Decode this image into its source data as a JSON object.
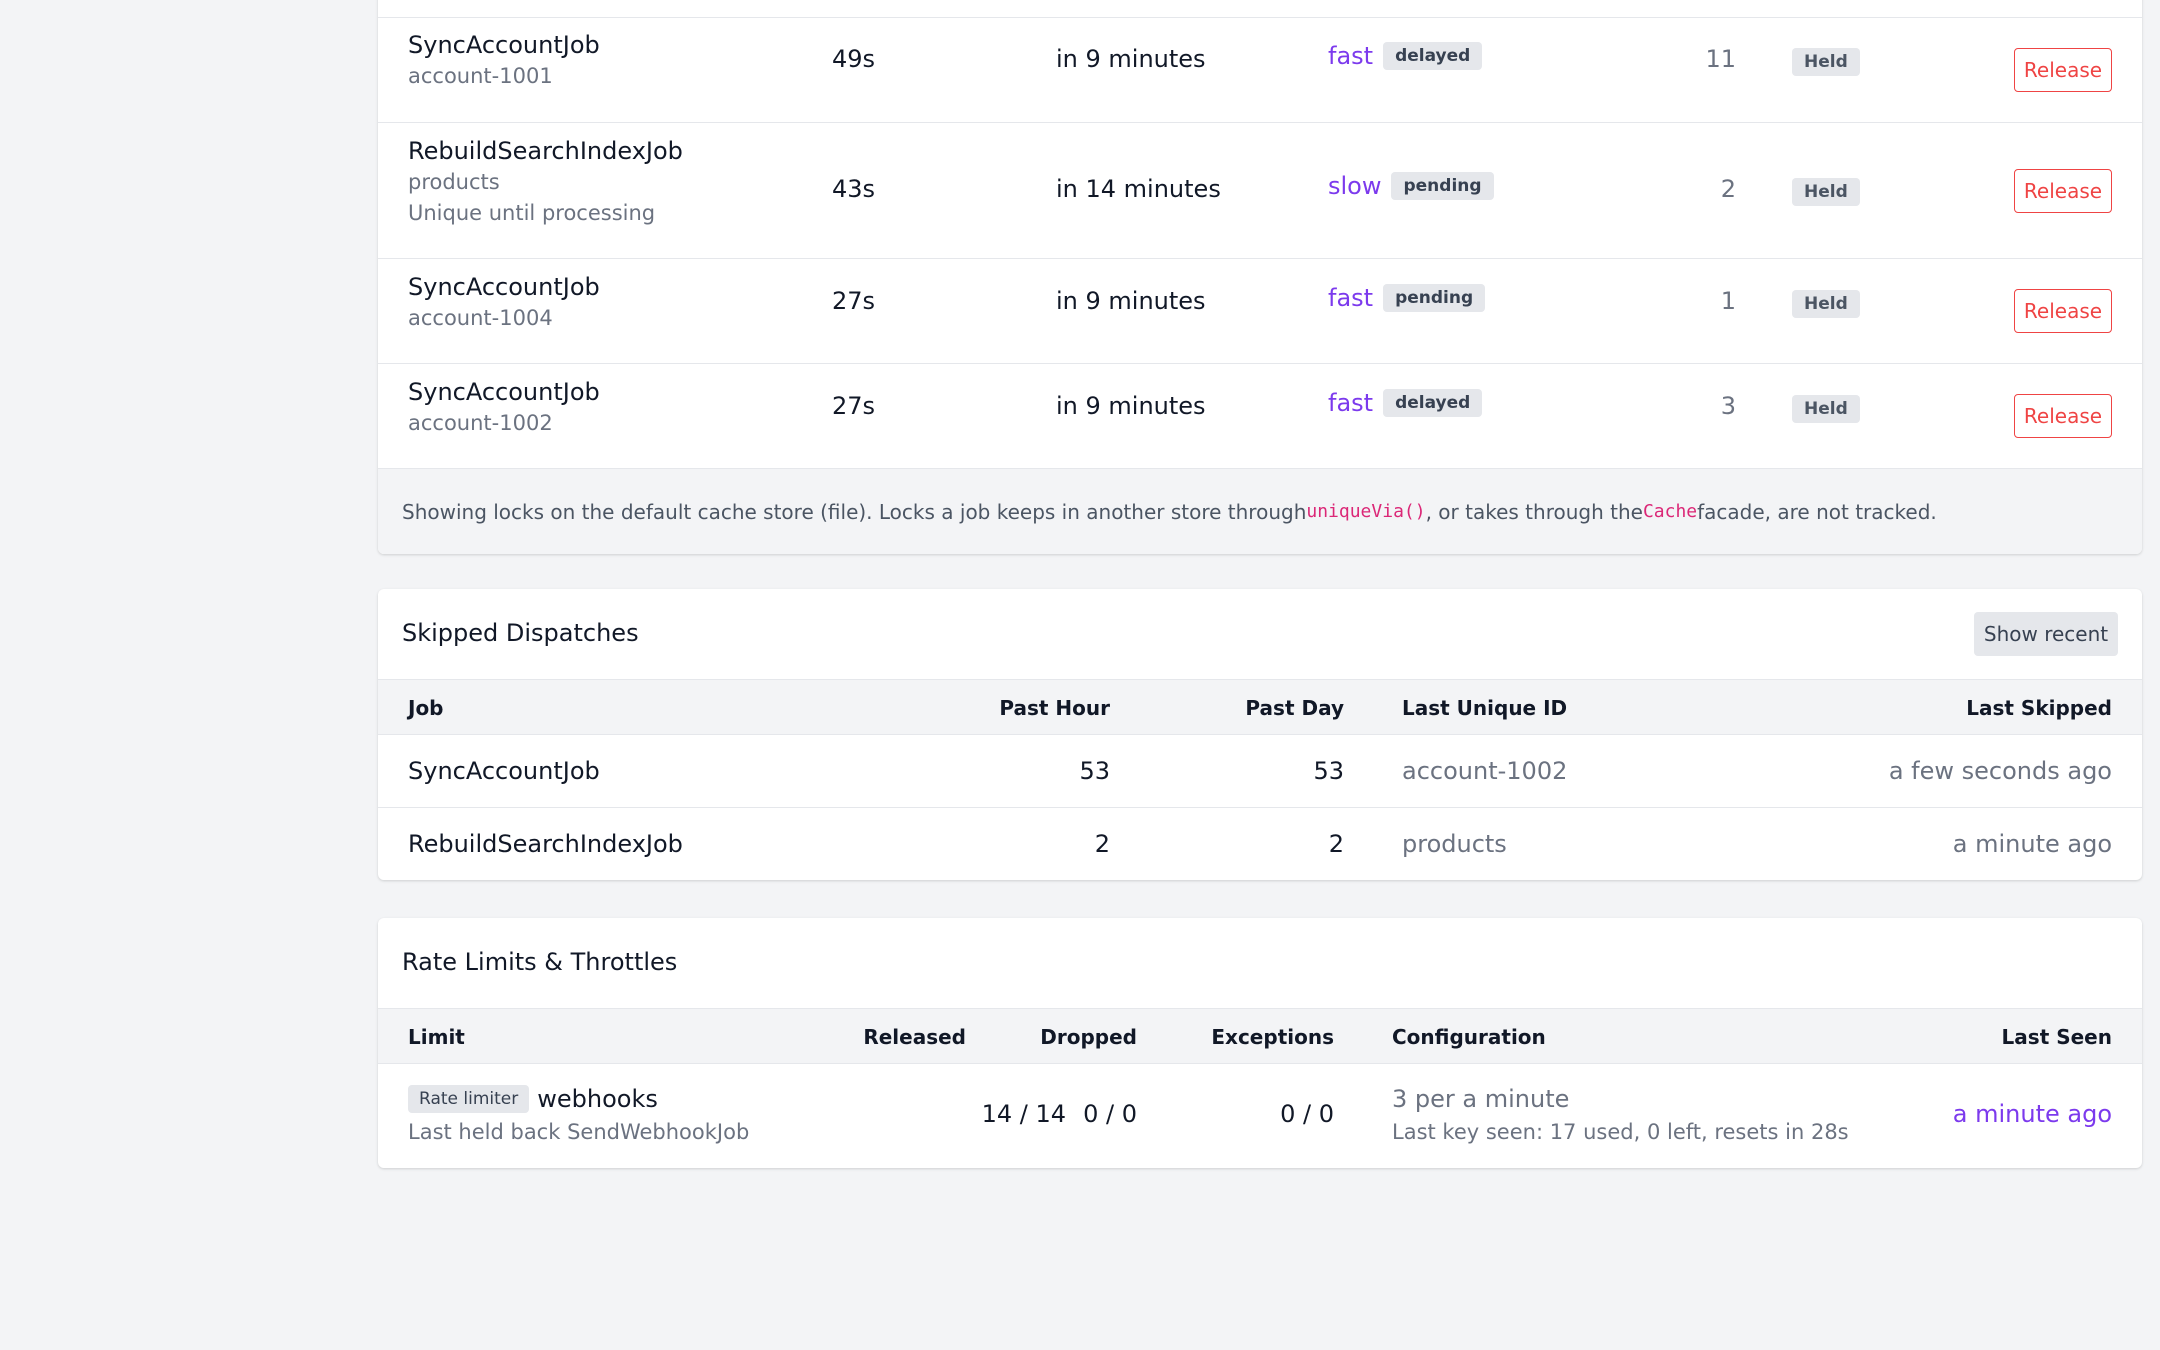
{
  "locks": {
    "rows": [
      {
        "job": "SyncAccountJob",
        "unique_id": "account-1001",
        "note": "",
        "duration": "49s",
        "expires": "in 9 minutes",
        "queue": "fast",
        "state": "delayed",
        "count": "11",
        "status": "Held",
        "action": "Release"
      },
      {
        "job": "RebuildSearchIndexJob",
        "unique_id": "products",
        "note": "Unique until processing",
        "duration": "43s",
        "expires": "in 14 minutes",
        "queue": "slow",
        "state": "pending",
        "count": "2",
        "status": "Held",
        "action": "Release"
      },
      {
        "job": "SyncAccountJob",
        "unique_id": "account-1004",
        "note": "",
        "duration": "27s",
        "expires": "in 9 minutes",
        "queue": "fast",
        "state": "pending",
        "count": "1",
        "status": "Held",
        "action": "Release"
      },
      {
        "job": "SyncAccountJob",
        "unique_id": "account-1002",
        "note": "",
        "duration": "27s",
        "expires": "in 9 minutes",
        "queue": "fast",
        "state": "delayed",
        "count": "3",
        "status": "Held",
        "action": "Release"
      }
    ],
    "footer": {
      "text_1": "Showing locks on the default cache store (file). Locks a job keeps in another store through ",
      "code_1": "uniqueVia()",
      "text_2": ", or takes through the ",
      "code_2": "Cache",
      "text_3": " facade, are not tracked."
    }
  },
  "skipped": {
    "title": "Skipped Dispatches",
    "show_recent_label": "Show recent",
    "columns": {
      "job": "Job",
      "past_hour": "Past Hour",
      "past_day": "Past Day",
      "last_unique_id": "Last Unique ID",
      "last_skipped": "Last Skipped"
    },
    "rows": [
      {
        "job": "SyncAccountJob",
        "past_hour": "53",
        "past_day": "53",
        "last_unique_id": "account-1002",
        "last_skipped": "a few seconds ago"
      },
      {
        "job": "RebuildSearchIndexJob",
        "past_hour": "2",
        "past_day": "2",
        "last_unique_id": "products",
        "last_skipped": "a minute ago"
      }
    ]
  },
  "rate_limits": {
    "title": "Rate Limits & Throttles",
    "columns": {
      "limit": "Limit",
      "released": "Released",
      "dropped": "Dropped",
      "exceptions": "Exceptions",
      "configuration": "Configuration",
      "last_seen": "Last Seen"
    },
    "rows": [
      {
        "type": "Rate limiter",
        "name": "webhooks",
        "detail": "Last held back SendWebhookJob",
        "released": "14 / 14",
        "dropped": "0 / 0",
        "exceptions": "0 / 0",
        "config": "3 per a minute",
        "config_detail": "Last key seen: 17 used, 0 left, resets in 28s",
        "last_seen": "a minute ago"
      }
    ]
  },
  "colors": {
    "accent": "#7c3aed",
    "danger": "#ef4444",
    "code": "#db2777",
    "background": "#f3f4f6"
  }
}
